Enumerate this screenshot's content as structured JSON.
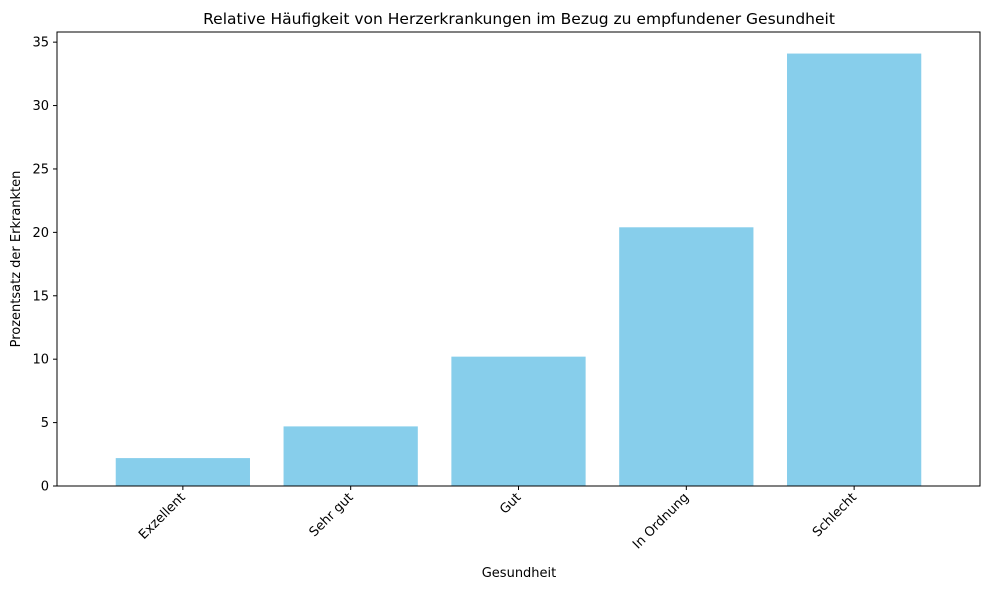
{
  "chart_data": {
    "type": "bar",
    "title": "Relative Häufigkeit von Herzerkrankungen im Bezug zu empfundener Gesundheit",
    "xlabel": "Gesundheit",
    "ylabel": "Prozentsatz der Erkrankten",
    "categories": [
      "Exzellent",
      "Sehr gut",
      "Gut",
      "In Ordnung",
      "Schlecht"
    ],
    "values": [
      2.2,
      4.7,
      10.2,
      20.4,
      34.1
    ],
    "ylim": [
      0,
      35.8
    ],
    "yticks": [
      0,
      5,
      10,
      15,
      20,
      25,
      30,
      35
    ],
    "bar_color": "#87CEEB",
    "grid": false,
    "legend": "none"
  }
}
